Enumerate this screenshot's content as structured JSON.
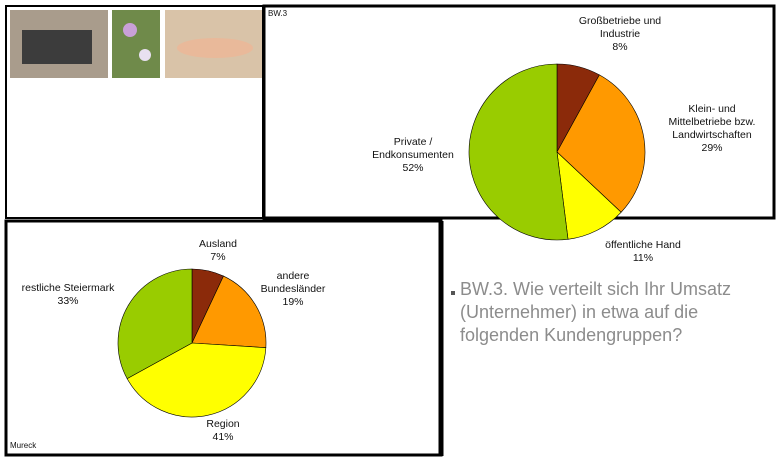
{
  "chart_data": [
    {
      "type": "pie",
      "label": "BW.3",
      "categories": [
        "Großbetriebe und Industrie",
        "Klein- und Mittelbetriebe bzw. Landwirtschaften",
        "öffentliche Hand",
        "Private / Endkonsumenten"
      ],
      "values": [
        8,
        29,
        11,
        52
      ],
      "value_labels": [
        "8%",
        "29%",
        "11%",
        "52%"
      ],
      "colors": [
        "#8b2a0a",
        "#ff9900",
        "#ffff00",
        "#99cc00"
      ]
    },
    {
      "type": "pie",
      "label": "Mureck",
      "categories": [
        "Ausland",
        "andere Bundesländer",
        "Region",
        "restliche Steiermark"
      ],
      "values": [
        7,
        19,
        41,
        33
      ],
      "value_labels": [
        "7%",
        "19%",
        "41%",
        "33%"
      ],
      "colors": [
        "#8b2a0a",
        "#ff9900",
        "#ffff00",
        "#99cc00"
      ]
    }
  ],
  "caption": "BW.3. Wie verteilt sich Ihr Umsatz (Unternehmer)  in etwa auf die folgenden Kundengruppen?"
}
